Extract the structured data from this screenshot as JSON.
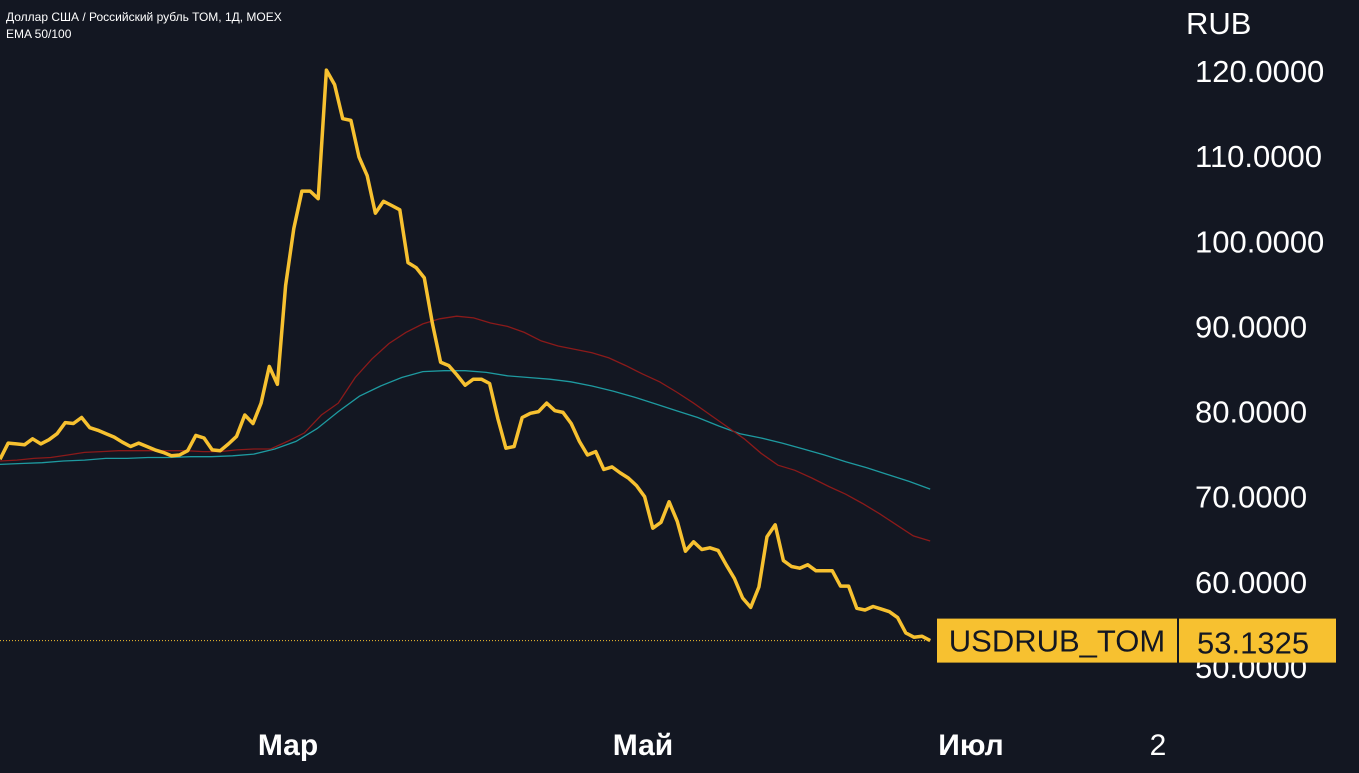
{
  "header": {
    "title": "Доллар США / Российский рубль ТОМ, 1Д, MOEX",
    "indicator": "EMA 50/100"
  },
  "colors": {
    "background": "#131722",
    "price": "#F7C130",
    "ema50": "#8B1A1A",
    "ema100": "#1E9AA0",
    "label_bg": "#F7C130",
    "label_text": "#131722",
    "axis_text": "#ffffff"
  },
  "chart_data": {
    "type": "line",
    "currency": "RUB",
    "ylim": [
      45,
      125
    ],
    "y_ticks": [
      120,
      110,
      100,
      90,
      80,
      70,
      60,
      50
    ],
    "y_tick_labels": [
      "120.0000",
      "110.0000",
      "100.0000",
      "90.0000",
      "80.0000",
      "70.0000",
      "60.0000",
      "50.0000"
    ],
    "x_labels": [
      "Мар",
      "Май",
      "Июл",
      "2"
    ],
    "last_value_label": "USDRUB_TOM",
    "last_value": "53.1325",
    "grid": false,
    "series": [
      {
        "name": "USDRUB_TOM",
        "role": "price",
        "values": [
          74.4,
          76.3,
          76.2,
          76.1,
          76.8,
          76.2,
          76.7,
          77.4,
          78.7,
          78.6,
          79.3,
          78.1,
          77.8,
          77.4,
          77,
          76.4,
          75.9,
          76.3,
          75.9,
          75.5,
          75.2,
          74.8,
          74.9,
          75.4,
          77.2,
          76.9,
          75.5,
          75.4,
          76.2,
          77.1,
          79.6,
          78.6,
          81,
          85.3,
          83.2,
          94.8,
          101.5,
          105.9,
          105.9,
          105,
          120.1,
          118.4,
          114.4,
          114.2,
          109.9,
          107.7,
          103.3,
          104.7,
          104.2,
          103.7,
          97.5,
          96.9,
          95.7,
          90.3,
          85.8,
          85.4,
          84.3,
          83.1,
          83.8,
          83.8,
          83.3,
          79.2,
          75.7,
          75.9,
          79.3,
          79.8,
          80,
          81,
          80.1,
          79.9,
          78.6,
          76.5,
          74.9,
          75.3,
          73.2,
          73.5,
          72.8,
          72.2,
          71.3,
          70,
          66.3,
          67,
          69.4,
          67.1,
          63.6,
          64.7,
          63.8,
          64,
          63.7,
          62,
          60.4,
          58.1,
          57,
          59.4,
          65.3,
          66.7,
          62.5,
          61.8,
          61.6,
          62,
          61.3,
          61.3,
          61.3,
          59.5,
          59.5,
          56.9,
          56.7,
          57.1,
          56.8,
          56.5,
          55.8,
          54,
          53.5,
          53.6,
          53.1
        ]
      },
      {
        "name": "EMA 50",
        "role": "ema50",
        "values": [
          74.2,
          74.3,
          74.5,
          74.6,
          74.9,
          75.2,
          75.3,
          75.4,
          75.4,
          75.4,
          75.4,
          75.4,
          75.3,
          75.3,
          75.5,
          75.6,
          75.6,
          76.5,
          77.5,
          79.6,
          81,
          84,
          86.2,
          88,
          89.3,
          90.3,
          90.9,
          91.2,
          91,
          90.4,
          90,
          89.3,
          88.3,
          87.7,
          87.3,
          86.9,
          86.3,
          85.4,
          84.4,
          83.5,
          82.3,
          81,
          79.6,
          78.2,
          76.8,
          75.1,
          73.7,
          73.1,
          72.2,
          71.2,
          70.3,
          69.2,
          68,
          66.7,
          65.4,
          64.8
        ]
      },
      {
        "name": "EMA 100",
        "role": "ema100",
        "values": [
          73.8,
          73.9,
          74,
          74.2,
          74.3,
          74.5,
          74.5,
          74.6,
          74.6,
          74.7,
          74.7,
          74.8,
          75,
          75.6,
          76.5,
          78,
          80,
          81.8,
          83,
          84,
          84.7,
          84.8,
          84.8,
          84.6,
          84.2,
          84,
          83.8,
          83.5,
          83,
          82.4,
          81.7,
          80.9,
          80.1,
          79.3,
          78.3,
          77.4,
          76.9,
          76.3,
          75.6,
          74.9,
          74.1,
          73.4,
          72.6,
          71.8,
          70.9
        ]
      }
    ]
  }
}
